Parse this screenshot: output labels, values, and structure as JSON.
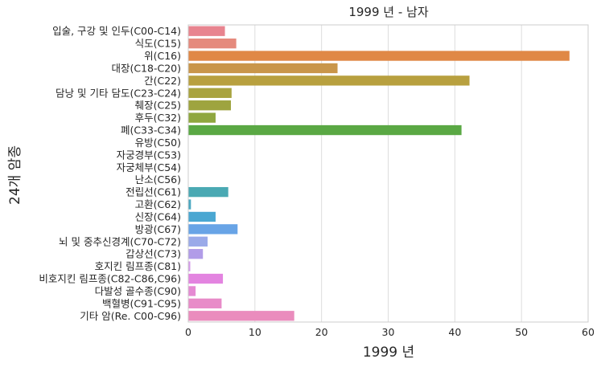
{
  "chart_data": {
    "type": "bar",
    "orientation": "horizontal",
    "title": "1999 년 - 남자",
    "xlabel": "1999 년",
    "ylabel": "24개 암종",
    "xlim": [
      0,
      60
    ],
    "xticks": [
      "0",
      "10",
      "20",
      "30",
      "40",
      "50",
      "60"
    ],
    "grid": "vertical",
    "categories": [
      "입술, 구강 및 인두(C00-C14)",
      "식도(C15)",
      "위(C16)",
      "대장(C18-C20)",
      "간(C22)",
      "담낭 및 기타 담도(C23-C24)",
      "췌장(C25)",
      "후두(C32)",
      "폐(C33-C34)",
      "유방(C50)",
      "자궁경부(C53)",
      "자궁체부(C54)",
      "난소(C56)",
      "전립선(C61)",
      "고환(C62)",
      "신장(C64)",
      "방광(C67)",
      "뇌 및 중추신경계(C70-C72)",
      "갑상선(C73)",
      "호지킨 림프종(C81)",
      "비호지킨 림프종(C82-C86,C96)",
      "다발성 골수종(C90)",
      "백혈병(C91-C95)",
      "기타 암(Re. C00-C96)"
    ],
    "values": [
      5.5,
      7.2,
      57.2,
      22.4,
      42.2,
      6.5,
      6.4,
      4.1,
      41.0,
      0,
      0,
      0,
      0,
      6.0,
      0.4,
      4.1,
      7.4,
      2.9,
      2.2,
      0.3,
      5.2,
      1.1,
      5.0,
      15.9
    ],
    "colors": [
      "#e8848f",
      "#e58a7d",
      "#e08846",
      "#c9964a",
      "#b8a03f",
      "#a9a33f",
      "#9ea43f",
      "#8fa73f",
      "#5aa844",
      "#4aab7a",
      "#48ac8e",
      "#48ab9a",
      "#49aaa5",
      "#4aa9b3",
      "#4aa8c1",
      "#4aa7d2",
      "#68a4e6",
      "#9aaae9",
      "#b19ce8",
      "#d49aea",
      "#e384e0",
      "#e58ad3",
      "#e88bc8",
      "#ea8cbd"
    ]
  }
}
